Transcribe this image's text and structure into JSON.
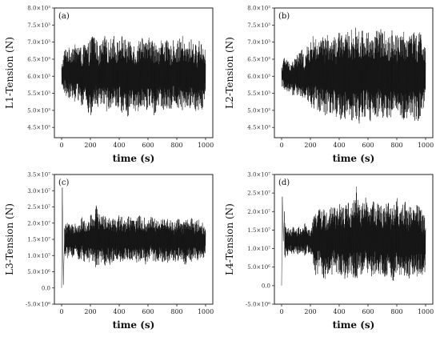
{
  "chart_data": [
    {
      "type": "line",
      "panel_label": "(a)",
      "xlabel": "time (s)",
      "ylabel": "L1-Tension (N)",
      "xlim": [
        -50,
        1050
      ],
      "ylim": [
        4.2,
        8.0
      ],
      "x_ticks": [
        0,
        200,
        400,
        600,
        800,
        1000
      ],
      "x_tick_labels": [
        "0",
        "200",
        "400",
        "600",
        "800",
        "1000"
      ],
      "y_ticks": [
        4.5,
        5.0,
        5.5,
        6.0,
        6.5,
        7.0,
        7.5,
        8.0
      ],
      "y_tick_labels": [
        "4.5×10³",
        "5.0×10³",
        "5.5×10³",
        "6.0×10³",
        "6.5×10³",
        "7.0×10³",
        "7.5×10³",
        "8.0×10³"
      ],
      "y_scale_note": "values in units of 10³ N",
      "x": [
        0,
        20,
        40,
        60,
        80,
        100,
        120,
        140,
        160,
        180,
        200,
        220,
        240,
        260,
        280,
        300,
        320,
        340,
        360,
        380,
        400,
        420,
        440,
        460,
        480,
        500,
        520,
        540,
        560,
        580,
        600,
        620,
        640,
        660,
        680,
        700,
        720,
        740,
        760,
        780,
        800,
        820,
        840,
        860,
        880,
        900,
        920,
        940,
        960,
        980,
        1000
      ],
      "y_max": [
        6.3,
        6.8,
        6.9,
        6.8,
        7.0,
        6.9,
        7.0,
        6.8,
        7.0,
        6.9,
        7.1,
        7.4,
        7.1,
        6.9,
        7.0,
        7.2,
        7.0,
        7.1,
        7.3,
        7.0,
        7.1,
        7.2,
        7.1,
        7.0,
        7.2,
        7.0,
        6.9,
        7.1,
        7.3,
        7.0,
        7.1,
        7.2,
        7.0,
        7.1,
        6.9,
        7.2,
        7.1,
        7.0,
        6.9,
        7.1,
        7.0,
        7.1,
        7.2,
        6.9,
        7.0,
        7.1,
        7.0,
        6.9,
        7.1,
        7.0,
        6.8
      ],
      "y_min": [
        5.6,
        5.5,
        5.3,
        5.4,
        5.3,
        5.2,
        5.3,
        5.1,
        5.2,
        5.0,
        4.7,
        5.0,
        5.1,
        5.0,
        5.2,
        4.9,
        5.0,
        5.1,
        4.9,
        5.0,
        5.1,
        4.9,
        5.0,
        4.8,
        5.1,
        5.0,
        4.9,
        5.0,
        5.2,
        4.9,
        5.0,
        5.1,
        4.8,
        5.0,
        5.1,
        5.0,
        4.9,
        5.1,
        5.0,
        5.1,
        5.0,
        5.1,
        4.9,
        5.0,
        5.0,
        5.1,
        5.0,
        4.9,
        5.1,
        5.0,
        5.4
      ]
    },
    {
      "type": "line",
      "panel_label": "(b)",
      "xlabel": "time (s)",
      "ylabel": "L2-Tension (N)",
      "xlim": [
        -50,
        1050
      ],
      "ylim": [
        4.2,
        8.0
      ],
      "x_ticks": [
        0,
        200,
        400,
        600,
        800,
        1000
      ],
      "x_tick_labels": [
        "0",
        "200",
        "400",
        "600",
        "800",
        "1000"
      ],
      "y_ticks": [
        4.5,
        5.0,
        5.5,
        6.0,
        6.5,
        7.0,
        7.5,
        8.0
      ],
      "y_tick_labels": [
        "4.5×10³",
        "5.0×10³",
        "5.5×10³",
        "6.0×10³",
        "6.5×10³",
        "7.0×10³",
        "7.5×10³",
        "8.0×10³"
      ],
      "y_scale_note": "values in units of 10³ N",
      "x": [
        0,
        20,
        40,
        60,
        80,
        100,
        120,
        140,
        160,
        180,
        200,
        220,
        240,
        260,
        280,
        300,
        320,
        340,
        360,
        380,
        400,
        420,
        440,
        460,
        480,
        500,
        520,
        540,
        560,
        580,
        600,
        620,
        640,
        660,
        680,
        700,
        720,
        740,
        760,
        780,
        800,
        820,
        840,
        860,
        880,
        900,
        920,
        940,
        960,
        980,
        1000
      ],
      "y_max": [
        6.3,
        6.6,
        6.5,
        6.4,
        6.5,
        6.6,
        6.7,
        6.8,
        6.6,
        6.9,
        7.0,
        7.2,
        7.1,
        7.0,
        7.2,
        7.1,
        7.3,
        7.0,
        7.2,
        7.1,
        7.3,
        7.4,
        7.2,
        7.3,
        7.4,
        7.3,
        7.5,
        7.3,
        7.4,
        7.2,
        7.4,
        7.3,
        7.2,
        7.4,
        7.3,
        7.5,
        7.3,
        7.2,
        7.4,
        7.3,
        7.2,
        7.3,
        7.4,
        7.2,
        7.3,
        7.5,
        7.3,
        7.2,
        7.4,
        7.3,
        6.8
      ],
      "y_min": [
        5.7,
        5.6,
        5.5,
        5.6,
        5.4,
        5.5,
        5.3,
        5.4,
        5.2,
        5.3,
        5.1,
        5.0,
        5.1,
        4.9,
        5.0,
        4.8,
        4.9,
        4.8,
        4.9,
        4.7,
        4.6,
        4.8,
        4.7,
        4.9,
        4.6,
        4.8,
        4.7,
        4.6,
        4.8,
        4.7,
        4.9,
        4.6,
        4.8,
        4.7,
        4.9,
        4.7,
        4.8,
        4.6,
        4.7,
        4.8,
        4.7,
        4.9,
        4.6,
        4.8,
        4.7,
        4.8,
        4.7,
        4.6,
        4.8,
        4.7,
        5.3
      ]
    },
    {
      "type": "line",
      "panel_label": "(c)",
      "xlabel": "time (s)",
      "ylabel": "L3-Tension (N)",
      "xlim": [
        -50,
        1050
      ],
      "ylim": [
        -0.5,
        3.5
      ],
      "x_ticks": [
        0,
        200,
        400,
        600,
        800,
        1000
      ],
      "x_tick_labels": [
        "0",
        "200",
        "400",
        "600",
        "800",
        "1000"
      ],
      "y_ticks": [
        -0.5,
        0.0,
        0.5,
        1.0,
        1.5,
        2.0,
        2.5,
        3.0,
        3.5
      ],
      "y_tick_labels": [
        "-5.0×10⁶",
        "0.0",
        "5.0×10⁶",
        "1.0×10⁷",
        "1.5×10⁷",
        "2.0×10⁷",
        "2.5×10⁷",
        "3.0×10⁷",
        "3.5×10⁷"
      ],
      "y_scale_note": "values in units of 10⁷ N",
      "startup_spike": {
        "x": [
          0,
          5,
          12,
          20
        ],
        "y": [
          0.0,
          3.1,
          0.1,
          1.5
        ]
      },
      "x": [
        20,
        40,
        60,
        80,
        100,
        120,
        140,
        160,
        180,
        200,
        220,
        240,
        260,
        280,
        300,
        320,
        340,
        360,
        380,
        400,
        420,
        440,
        460,
        480,
        500,
        520,
        540,
        560,
        580,
        600,
        620,
        640,
        660,
        680,
        700,
        720,
        740,
        760,
        780,
        800,
        820,
        840,
        860,
        880,
        900,
        920,
        940,
        960,
        980,
        1000
      ],
      "y_max": [
        1.9,
        2.1,
        1.9,
        2.0,
        2.1,
        2.0,
        2.2,
        2.1,
        2.0,
        2.3,
        2.2,
        2.6,
        2.3,
        2.2,
        2.4,
        2.2,
        2.3,
        2.2,
        2.1,
        2.3,
        2.2,
        2.1,
        2.3,
        2.2,
        2.1,
        2.2,
        2.3,
        2.1,
        2.2,
        2.1,
        2.3,
        2.2,
        2.1,
        2.2,
        2.1,
        2.3,
        2.2,
        2.1,
        2.0,
        2.2,
        2.1,
        2.0,
        2.2,
        2.1,
        2.2,
        2.0,
        2.1,
        2.2,
        2.0,
        1.9
      ],
      "y_min": [
        1.0,
        0.9,
        1.1,
        0.9,
        1.0,
        0.8,
        0.9,
        0.8,
        0.9,
        0.7,
        0.8,
        0.5,
        0.7,
        0.8,
        0.6,
        0.8,
        0.7,
        0.8,
        0.9,
        0.7,
        0.8,
        0.9,
        0.7,
        0.8,
        0.9,
        0.7,
        0.8,
        0.9,
        0.7,
        0.8,
        0.9,
        0.8,
        0.7,
        0.9,
        0.8,
        0.7,
        0.8,
        0.9,
        0.8,
        0.7,
        0.9,
        0.8,
        0.7,
        0.9,
        0.8,
        0.9,
        0.8,
        0.9,
        0.8,
        1.1
      ]
    },
    {
      "type": "line",
      "panel_label": "(d)",
      "xlabel": "time (s)",
      "ylabel": "L4-Tension (N)",
      "xlim": [
        -50,
        1050
      ],
      "ylim": [
        -0.5,
        3.0
      ],
      "x_ticks": [
        0,
        200,
        400,
        600,
        800,
        1000
      ],
      "x_tick_labels": [
        "0",
        "200",
        "400",
        "600",
        "800",
        "1000"
      ],
      "y_ticks": [
        -0.5,
        0.0,
        0.5,
        1.0,
        1.5,
        2.0,
        2.5,
        3.0
      ],
      "y_tick_labels": [
        "-5.0×10⁶",
        "0.0",
        "5.0×10⁶",
        "1.0×10⁷",
        "1.5×10⁷",
        "2.0×10⁷",
        "2.5×10⁷",
        "3.0×10⁷"
      ],
      "y_scale_note": "values in units of 10⁷ N",
      "startup_spike": {
        "x": [
          0,
          5,
          12,
          20
        ],
        "y": [
          0.0,
          2.4,
          1.2,
          2.0
        ]
      },
      "x": [
        20,
        40,
        60,
        80,
        100,
        120,
        140,
        160,
        180,
        200,
        220,
        240,
        260,
        280,
        300,
        320,
        340,
        360,
        380,
        400,
        420,
        440,
        460,
        480,
        500,
        520,
        540,
        560,
        580,
        600,
        620,
        640,
        660,
        680,
        700,
        720,
        740,
        760,
        780,
        800,
        820,
        840,
        860,
        880,
        900,
        920,
        940,
        960,
        980,
        1000
      ],
      "y_max": [
        1.7,
        1.6,
        1.5,
        1.6,
        1.5,
        1.6,
        1.5,
        1.7,
        1.6,
        1.5,
        1.8,
        2.1,
        2.3,
        2.0,
        2.2,
        1.9,
        2.1,
        2.2,
        2.0,
        2.3,
        2.1,
        2.2,
        2.3,
        2.1,
        2.4,
        2.7,
        2.3,
        2.2,
        2.5,
        2.3,
        2.1,
        2.4,
        2.2,
        2.3,
        2.1,
        2.2,
        2.3,
        2.1,
        2.2,
        2.4,
        2.1,
        2.2,
        2.3,
        2.1,
        2.2,
        2.1,
        2.3,
        2.2,
        2.0,
        1.8
      ],
      "y_min": [
        0.7,
        0.8,
        0.9,
        0.8,
        0.9,
        0.8,
        0.9,
        0.8,
        0.9,
        0.8,
        0.6,
        0.2,
        0.4,
        0.3,
        0.1,
        0.3,
        0.2,
        0.4,
        0.3,
        0.2,
        0.3,
        0.1,
        0.2,
        0.3,
        0.2,
        0.1,
        0.3,
        0.2,
        0.3,
        0.1,
        0.2,
        0.3,
        0.2,
        0.1,
        0.3,
        0.2,
        0.3,
        0.2,
        0.1,
        0.3,
        0.2,
        0.3,
        0.2,
        0.1,
        0.2,
        0.3,
        0.2,
        0.3,
        0.2,
        0.4
      ]
    }
  ]
}
